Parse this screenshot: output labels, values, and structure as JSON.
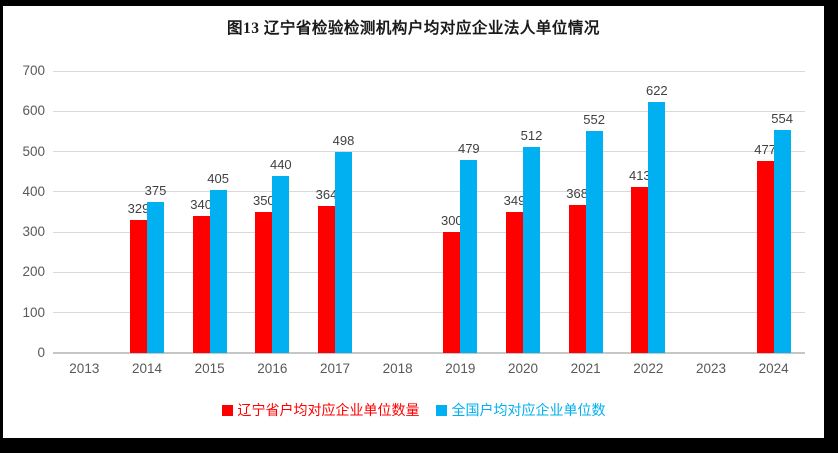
{
  "chart_data": {
    "type": "bar",
    "title": "图13 辽宁省检验检测机构户均对应企业法人单位情况",
    "categories": [
      "2013",
      "2014",
      "2015",
      "2016",
      "2017",
      "2018",
      "2019",
      "2020",
      "2021",
      "2022",
      "2023",
      "2024"
    ],
    "series": [
      {
        "name": "辽宁省户均对应企业单位数量",
        "color": "#FF0000",
        "values": [
          null,
          329,
          340,
          350,
          364,
          null,
          300,
          349,
          368,
          413,
          null,
          477
        ]
      },
      {
        "name": "全国户均对应企业单位数",
        "color": "#00B0F0",
        "values": [
          null,
          375,
          405,
          440,
          498,
          null,
          479,
          512,
          552,
          622,
          null,
          554
        ]
      }
    ],
    "xlabel": "",
    "ylabel": "",
    "ylim": [
      0,
      700
    ],
    "yticks": [
      0,
      100,
      200,
      300,
      400,
      500,
      600,
      700
    ],
    "grid": "horizontal",
    "legend_position": "bottom",
    "value_labels": true
  },
  "style": {
    "grid_color": "#D9D9D9",
    "axis_line_color": "#C6C6C6",
    "tick_text_color": "#595959",
    "value_label_color": "#404040",
    "frame_color": "#000000",
    "background_color": "#FFFFFF"
  }
}
